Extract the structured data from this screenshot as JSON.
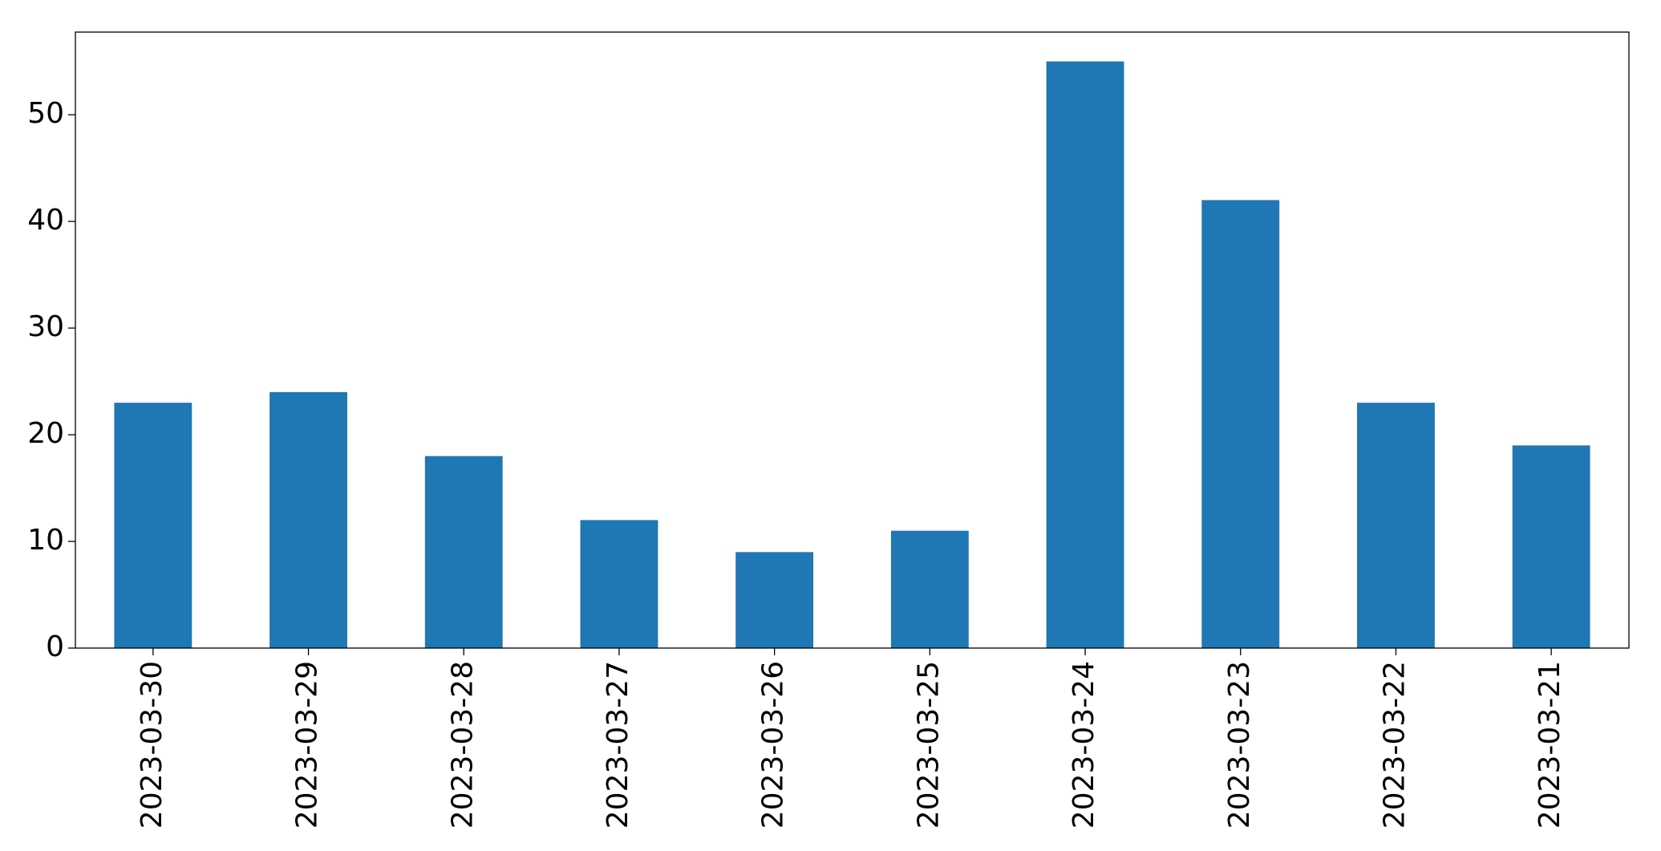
{
  "chart_data": {
    "type": "bar",
    "categories": [
      "2023-03-30",
      "2023-03-29",
      "2023-03-28",
      "2023-03-27",
      "2023-03-26",
      "2023-03-25",
      "2023-03-24",
      "2023-03-23",
      "2023-03-22",
      "2023-03-21"
    ],
    "values": [
      23,
      24,
      18,
      12,
      9,
      11,
      55,
      42,
      23,
      19
    ],
    "color": "#1f77b4",
    "ylim": [
      0,
      57.75
    ],
    "yticks": [
      0,
      10,
      20,
      30,
      40,
      50
    ],
    "grid": false
  }
}
